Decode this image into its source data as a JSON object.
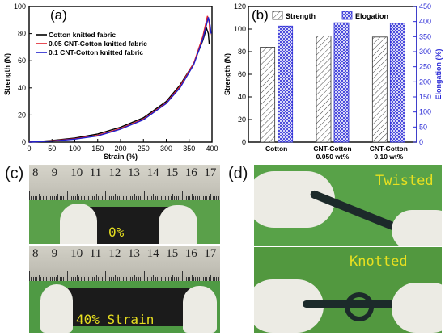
{
  "panel_labels": {
    "a": "(a)",
    "b": "(b)",
    "c": "(c)",
    "d": "(d)"
  },
  "chart_data": [
    {
      "type": "line",
      "panel": "(a)",
      "xlabel": "Strain (%)",
      "ylabel": "Strength (N)",
      "xlim": [
        0,
        400
      ],
      "ylim": [
        0,
        100
      ],
      "xticks": [
        0,
        50,
        100,
        150,
        200,
        250,
        300,
        350,
        400
      ],
      "yticks": [
        0,
        20,
        40,
        60,
        80,
        100
      ],
      "grid": false,
      "legend_position": "top-left",
      "series": [
        {
          "name": "Cotton knitted fabric",
          "color": "#000000",
          "x": [
            0,
            50,
            100,
            150,
            200,
            250,
            300,
            330,
            360,
            380,
            388,
            392,
            394
          ],
          "y": [
            0,
            1.2,
            3,
            6,
            11,
            18,
            30,
            42,
            58,
            75,
            84,
            80,
            72
          ]
        },
        {
          "name": "0.05 CNT-Cotton knitted fabric",
          "color": "#e0202a",
          "x": [
            0,
            50,
            100,
            150,
            200,
            250,
            300,
            330,
            360,
            380,
            390,
            394,
            396
          ],
          "y": [
            0,
            1,
            2.5,
            5,
            10,
            17,
            29,
            41,
            58,
            78,
            93,
            88,
            79
          ]
        },
        {
          "name": "0.1 CNT-Cotton knitted fabric",
          "color": "#2121cc",
          "x": [
            0,
            50,
            100,
            150,
            200,
            250,
            300,
            330,
            360,
            380,
            392,
            396,
            398
          ],
          "y": [
            0,
            0.8,
            2.2,
            4.6,
            9.5,
            16.5,
            28.5,
            40,
            57,
            76,
            92,
            86,
            80
          ]
        }
      ]
    },
    {
      "type": "bar",
      "panel": "(b)",
      "categories": [
        "Cotton",
        "CNT-Cotton\n0.050  wt%",
        "CNT-Cotton\n0.10 wt%"
      ],
      "ylabel": "Strength (N)",
      "y2label": "Elongation (%)",
      "ylim": [
        0,
        120
      ],
      "y2lim": [
        0,
        450
      ],
      "yticks": [
        0,
        20,
        40,
        60,
        80,
        100,
        120
      ],
      "y2ticks": [
        0,
        50,
        100,
        150,
        200,
        250,
        300,
        350,
        400,
        450
      ],
      "legend_position": "top",
      "series": [
        {
          "name": "Strength",
          "axis": "left",
          "pattern": "diagonal-hatch",
          "color": "#555555",
          "values": [
            84,
            94,
            93
          ]
        },
        {
          "name": "Elogation",
          "axis": "right",
          "pattern": "crosshatch",
          "color": "#2b2bd6",
          "values": [
            385,
            396,
            394
          ]
        }
      ]
    }
  ],
  "photos": {
    "c_top": {
      "label": "0%",
      "ruler_numbers": [
        "8",
        "9",
        "10",
        "11",
        "12",
        "13",
        "14",
        "15",
        "16",
        "17"
      ]
    },
    "c_bottom": {
      "label": "40% Strain",
      "ruler_numbers": [
        "8",
        "9",
        "10",
        "11",
        "12",
        "13",
        "14",
        "15",
        "16",
        "17"
      ]
    },
    "d_top": {
      "label": "Twisted"
    },
    "d_bottom": {
      "label": "Knotted"
    }
  },
  "colors": {
    "photo_label": "#e8e020",
    "photo_bg": "#5aa04a",
    "fabric": "#1a1a1a",
    "glove": "#e8e6dc",
    "ruler": "#c9c7bd"
  }
}
